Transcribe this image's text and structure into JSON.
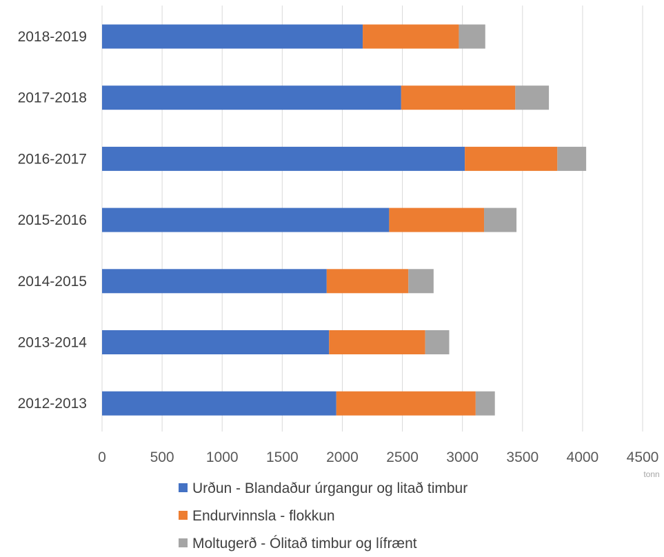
{
  "chart_data": {
    "type": "bar",
    "orientation": "horizontal",
    "stacked": true,
    "categories": [
      "2018-2019",
      "2017-2018",
      "2016-2017",
      "2015-2016",
      "2014-2015",
      "2013-2014",
      "2012-2013"
    ],
    "series": [
      {
        "name": "Urðun - Blandaður úrgangur og litað timbur",
        "color": "#4472c4",
        "values": [
          2170,
          2490,
          3020,
          2390,
          1870,
          1890,
          1950
        ]
      },
      {
        "name": "Endurvinnsla - flokkun",
        "color": "#ed7d31",
        "values": [
          800,
          950,
          770,
          790,
          680,
          800,
          1160
        ]
      },
      {
        "name": "Moltugerð - Ólitað timbur og lífrænt",
        "color": "#a5a5a5",
        "values": [
          220,
          280,
          240,
          270,
          210,
          200,
          160
        ]
      }
    ],
    "xlim": [
      0,
      4500
    ],
    "x_ticks": [
      "0",
      "500",
      "1000",
      "1500",
      "2000",
      "2500",
      "3000",
      "3500",
      "4000",
      "4500"
    ],
    "x_unit": "tonn",
    "grid": "vertical",
    "legend_position": "bottom"
  }
}
